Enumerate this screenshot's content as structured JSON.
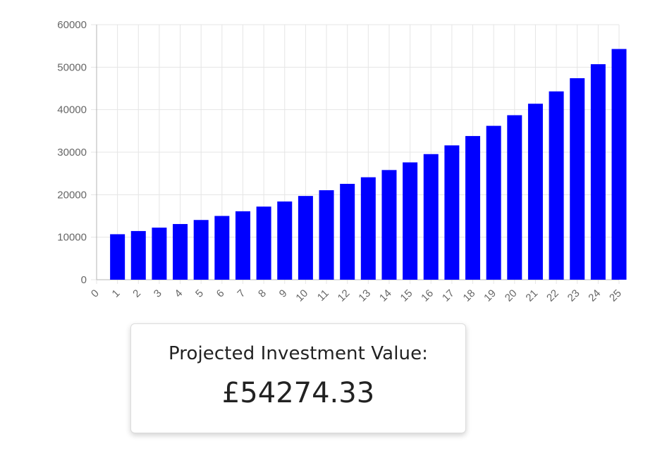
{
  "chart_data": {
    "type": "bar",
    "title": "",
    "xlabel": "",
    "ylabel": "",
    "categories": [
      "0",
      "1",
      "2",
      "3",
      "4",
      "5",
      "6",
      "7",
      "8",
      "9",
      "10",
      "11",
      "12",
      "13",
      "14",
      "15",
      "16",
      "17",
      "18",
      "19",
      "20",
      "21",
      "22",
      "23",
      "24",
      "25"
    ],
    "values": [
      0,
      10700,
      11450,
      12250,
      13100,
      14050,
      15000,
      16100,
      17200,
      18400,
      19700,
      21050,
      22550,
      24100,
      25800,
      27600,
      29550,
      31600,
      33800,
      36200,
      38700,
      41400,
      44300,
      47400,
      50700,
      54274.33
    ],
    "ylim": [
      0,
      60000
    ],
    "yticks": [
      0,
      10000,
      20000,
      30000,
      40000,
      50000,
      60000
    ],
    "grid": true,
    "legend": "none",
    "colors": {
      "bar": "#0000ff",
      "grid": "#e5e5e5",
      "axis": "#b5b5b5",
      "tick_text": "#666666"
    }
  },
  "result": {
    "title": "Projected Investment Value:",
    "value": "£54274.33"
  }
}
